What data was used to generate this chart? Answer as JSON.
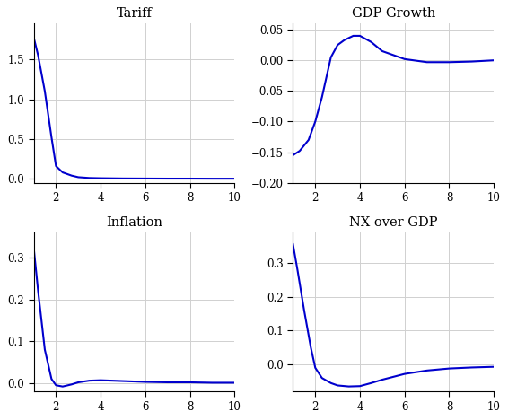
{
  "subplots": [
    {
      "title": "Tariff",
      "x": [
        1,
        1.2,
        1.5,
        1.8,
        2.0,
        2.3,
        2.7,
        3.0,
        3.5,
        4.0,
        5.0,
        6.0,
        7.0,
        8.0,
        9.0,
        10.0
      ],
      "y": [
        1.78,
        1.55,
        1.1,
        0.52,
        0.16,
        0.08,
        0.04,
        0.02,
        0.01,
        0.007,
        0.004,
        0.003,
        0.002,
        0.002,
        0.001,
        0.001
      ],
      "ylim": [
        -0.05,
        1.95
      ],
      "yticks": [
        0,
        0.5,
        1.0,
        1.5
      ],
      "xticks": [
        2,
        4,
        6,
        8,
        10
      ],
      "xlim": [
        1,
        10
      ]
    },
    {
      "title": "GDP Growth",
      "x": [
        1,
        1.3,
        1.7,
        2.0,
        2.3,
        2.7,
        3.0,
        3.3,
        3.7,
        4.0,
        4.5,
        5.0,
        6.0,
        7.0,
        8.0,
        9.0,
        10.0
      ],
      "y": [
        -0.155,
        -0.148,
        -0.13,
        -0.1,
        -0.06,
        0.005,
        0.025,
        0.033,
        0.04,
        0.04,
        0.03,
        0.015,
        0.002,
        -0.003,
        -0.003,
        -0.002,
        0.0
      ],
      "ylim": [
        -0.2,
        0.06
      ],
      "yticks": [
        -0.2,
        -0.15,
        -0.1,
        -0.05,
        0.0,
        0.05
      ],
      "xticks": [
        2,
        4,
        6,
        8,
        10
      ],
      "xlim": [
        1,
        10
      ]
    },
    {
      "title": "Inflation",
      "x": [
        1,
        1.2,
        1.5,
        1.8,
        2.0,
        2.3,
        2.7,
        3.0,
        3.5,
        4.0,
        4.5,
        5.0,
        6.0,
        7.0,
        8.0,
        9.0,
        10.0
      ],
      "y": [
        0.325,
        0.22,
        0.08,
        0.01,
        -0.005,
        -0.008,
        -0.003,
        0.002,
        0.006,
        0.007,
        0.006,
        0.005,
        0.003,
        0.002,
        0.002,
        0.001,
        0.001
      ],
      "ylim": [
        -0.02,
        0.36
      ],
      "yticks": [
        0,
        0.1,
        0.2,
        0.3
      ],
      "xticks": [
        2,
        4,
        6,
        8,
        10
      ],
      "xlim": [
        1,
        10
      ]
    },
    {
      "title": "NX over GDP",
      "x": [
        1,
        1.2,
        1.5,
        1.8,
        2.0,
        2.3,
        2.7,
        3.0,
        3.5,
        4.0,
        4.5,
        5.0,
        6.0,
        7.0,
        8.0,
        9.0,
        10.0
      ],
      "y": [
        0.355,
        0.28,
        0.16,
        0.05,
        -0.01,
        -0.04,
        -0.055,
        -0.062,
        -0.065,
        -0.064,
        -0.055,
        -0.045,
        -0.028,
        -0.018,
        -0.012,
        -0.009,
        -0.007
      ],
      "ylim": [
        -0.08,
        0.39
      ],
      "yticks": [
        0,
        0.1,
        0.2,
        0.3
      ],
      "xticks": [
        2,
        4,
        6,
        8,
        10
      ],
      "xlim": [
        1,
        10
      ]
    }
  ],
  "line_color": "#0000cd",
  "line_width": 1.5,
  "grid_color": "#d0d0d0",
  "bg_color": "#ffffff",
  "title_fontsize": 10.5,
  "tick_fontsize": 8.5
}
